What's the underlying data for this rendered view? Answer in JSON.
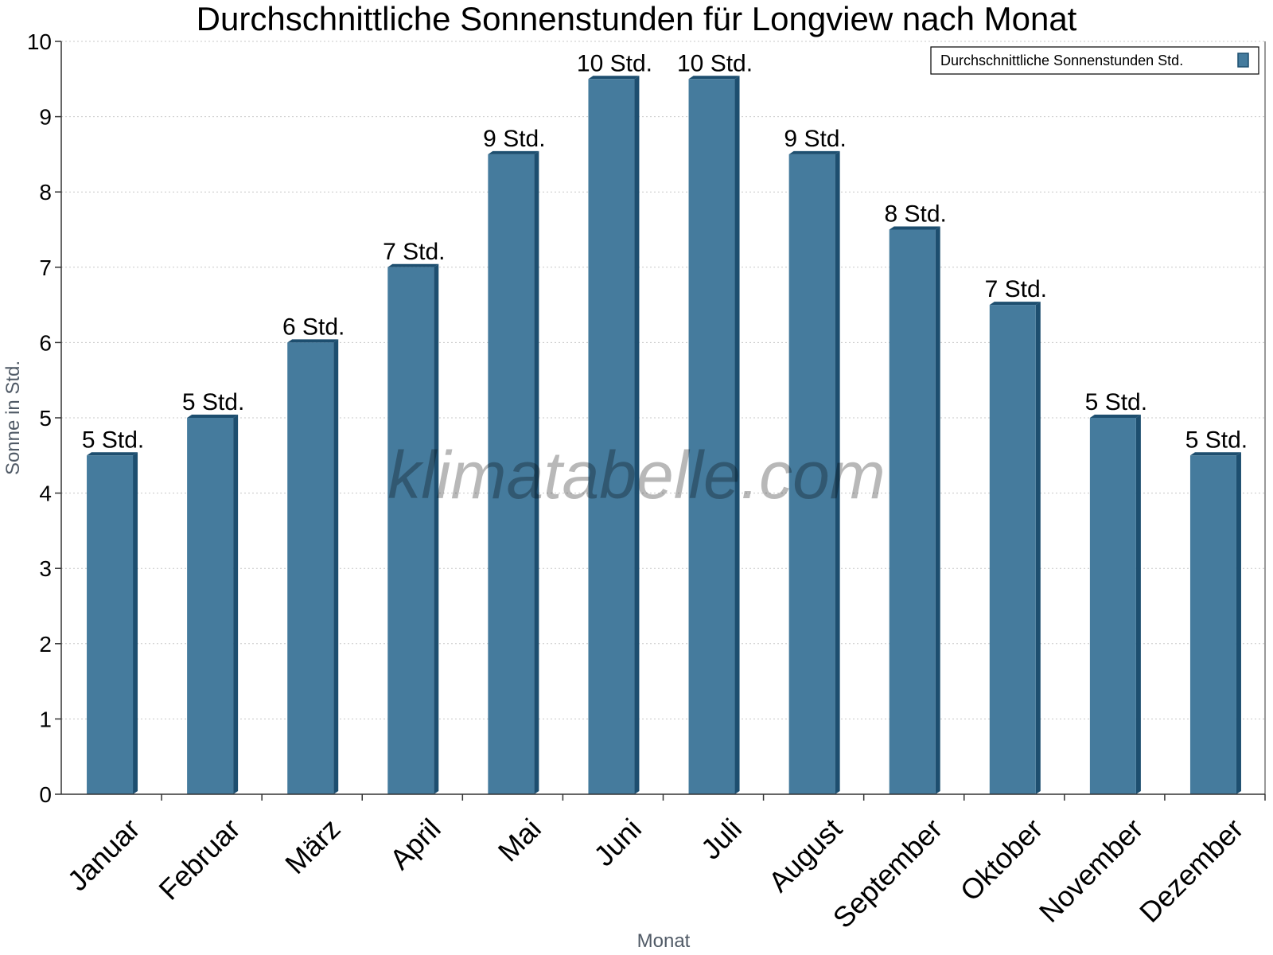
{
  "chart_data": {
    "type": "bar",
    "title": "Durchschnittliche Sonnenstunden für Longview nach Monat",
    "xlabel": "Monat",
    "ylabel": "Sonne in Std.",
    "ylim": [
      0,
      10
    ],
    "yticks": [
      "0",
      "1",
      "2",
      "3",
      "4",
      "5",
      "6",
      "7",
      "8",
      "9",
      "10"
    ],
    "categories": [
      "Januar",
      "Februar",
      "März",
      "April",
      "Mai",
      "Juni",
      "Juli",
      "August",
      "September",
      "Oktober",
      "November",
      "Dezember"
    ],
    "series": [
      {
        "name": "Durchschnittliche Sonnenstunden Std.",
        "values": [
          4.5,
          5,
          6,
          7,
          8.5,
          9.5,
          9.5,
          8.5,
          7.5,
          6.5,
          5,
          4.5
        ],
        "labels": [
          "5 Std.",
          "5 Std.",
          "6 Std.",
          "7 Std.",
          "9 Std.",
          "10 Std.",
          "10 Std.",
          "9 Std.",
          "8 Std.",
          "7 Std.",
          "5 Std.",
          "5 Std."
        ]
      }
    ],
    "grid": true,
    "legend_position": "top-right",
    "colors": {
      "bar": "#457b9d",
      "bar_side": "#1d4e6f",
      "bar_top": "#1d4e6f",
      "grid": "#c8c8c8",
      "axis": "#333333"
    }
  },
  "watermark": "klimatabelle.com"
}
